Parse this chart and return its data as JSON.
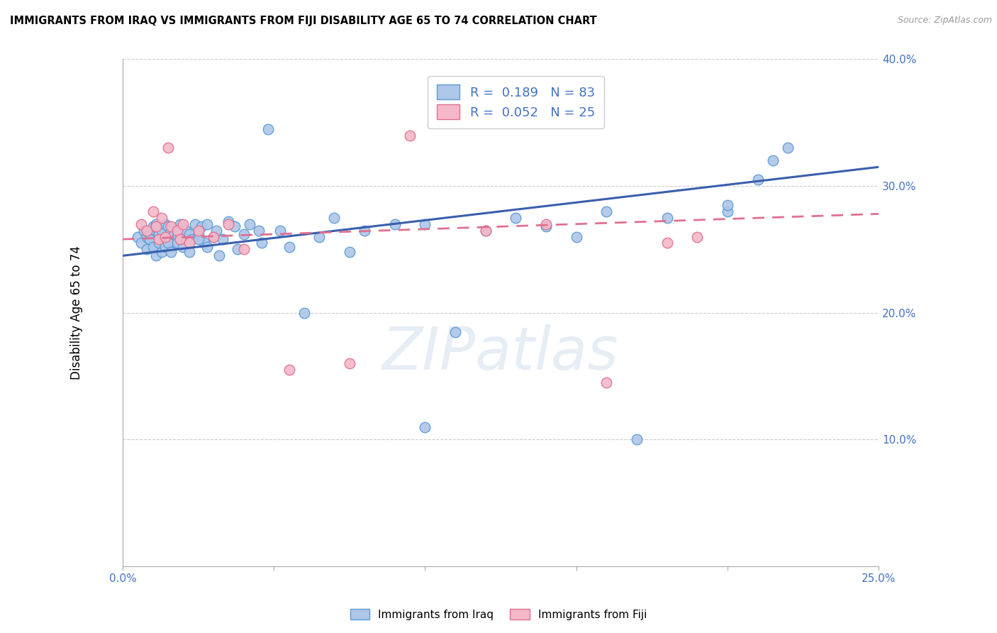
{
  "title": "IMMIGRANTS FROM IRAQ VS IMMIGRANTS FROM FIJI DISABILITY AGE 65 TO 74 CORRELATION CHART",
  "source": "Source: ZipAtlas.com",
  "ylabel": "Disability Age 65 to 74",
  "xlim": [
    0.0,
    0.25
  ],
  "ylim": [
    0.0,
    0.4
  ],
  "xticks": [
    0.0,
    0.05,
    0.1,
    0.15,
    0.2,
    0.25
  ],
  "yticks": [
    0.0,
    0.1,
    0.2,
    0.3,
    0.4
  ],
  "xtick_labels": [
    "0.0%",
    "",
    "",
    "",
    "",
    "25.0%"
  ],
  "ytick_labels": [
    "",
    "10.0%",
    "20.0%",
    "30.0%",
    "40.0%"
  ],
  "iraq_color": "#aec6e8",
  "iraq_edge_color": "#5b9bd5",
  "fiji_color": "#f4b8c8",
  "fiji_edge_color": "#e07090",
  "iraq_line_color": "#3a5fad",
  "fiji_line_color": "#e07090",
  "iraq_R": 0.189,
  "iraq_N": 83,
  "fiji_R": 0.052,
  "fiji_N": 25,
  "legend_text_color": "#4472c4",
  "watermark": "ZIPatlas",
  "grid_color": "#cccccc",
  "iraq_x": [
    0.005,
    0.006,
    0.007,
    0.008,
    0.009,
    0.01,
    0.01,
    0.011,
    0.011,
    0.012,
    0.012,
    0.013,
    0.013,
    0.014,
    0.014,
    0.015,
    0.015,
    0.016,
    0.016,
    0.017,
    0.017,
    0.018,
    0.018,
    0.019,
    0.019,
    0.02,
    0.021,
    0.022,
    0.023,
    0.024,
    0.025,
    0.026,
    0.027,
    0.028,
    0.03,
    0.031,
    0.033,
    0.035,
    0.037,
    0.04,
    0.042,
    0.045,
    0.048,
    0.052,
    0.06,
    0.065,
    0.07,
    0.08,
    0.09,
    0.1,
    0.11,
    0.13,
    0.15,
    0.17,
    0.2,
    0.21,
    0.22,
    0.008,
    0.009,
    0.01,
    0.011,
    0.012,
    0.013,
    0.014,
    0.015,
    0.016,
    0.018,
    0.02,
    0.022,
    0.025,
    0.028,
    0.032,
    0.038,
    0.046,
    0.055,
    0.075,
    0.1,
    0.12,
    0.14,
    0.16,
    0.18,
    0.2,
    0.215
  ],
  "iraq_y": [
    0.26,
    0.255,
    0.265,
    0.26,
    0.262,
    0.258,
    0.268,
    0.252,
    0.27,
    0.256,
    0.262,
    0.258,
    0.265,
    0.255,
    0.27,
    0.26,
    0.268,
    0.258,
    0.264,
    0.256,
    0.262,
    0.26,
    0.266,
    0.258,
    0.27,
    0.26,
    0.265,
    0.262,
    0.258,
    0.27,
    0.262,
    0.268,
    0.255,
    0.27,
    0.26,
    0.265,
    0.258,
    0.272,
    0.268,
    0.262,
    0.27,
    0.265,
    0.345,
    0.265,
    0.2,
    0.26,
    0.275,
    0.265,
    0.27,
    0.11,
    0.185,
    0.275,
    0.26,
    0.1,
    0.28,
    0.305,
    0.33,
    0.25,
    0.258,
    0.252,
    0.245,
    0.255,
    0.248,
    0.252,
    0.255,
    0.248,
    0.255,
    0.252,
    0.248,
    0.258,
    0.252,
    0.245,
    0.25,
    0.255,
    0.252,
    0.248,
    0.27,
    0.265,
    0.268,
    0.28,
    0.275,
    0.285,
    0.32
  ],
  "fiji_x": [
    0.006,
    0.008,
    0.01,
    0.011,
    0.012,
    0.013,
    0.014,
    0.015,
    0.016,
    0.018,
    0.019,
    0.02,
    0.022,
    0.025,
    0.03,
    0.035,
    0.04,
    0.055,
    0.075,
    0.095,
    0.12,
    0.14,
    0.16,
    0.18,
    0.19
  ],
  "fiji_y": [
    0.27,
    0.265,
    0.28,
    0.268,
    0.258,
    0.275,
    0.26,
    0.33,
    0.268,
    0.265,
    0.258,
    0.27,
    0.255,
    0.265,
    0.26,
    0.27,
    0.25,
    0.155,
    0.16,
    0.34,
    0.265,
    0.27,
    0.145,
    0.255,
    0.26
  ],
  "iraq_trend_x0": 0.0,
  "iraq_trend_y0": 0.245,
  "iraq_trend_x1": 0.25,
  "iraq_trend_y1": 0.315,
  "fiji_trend_x0": 0.0,
  "fiji_trend_y0": 0.258,
  "fiji_trend_x1": 0.25,
  "fiji_trend_y1": 0.278
}
